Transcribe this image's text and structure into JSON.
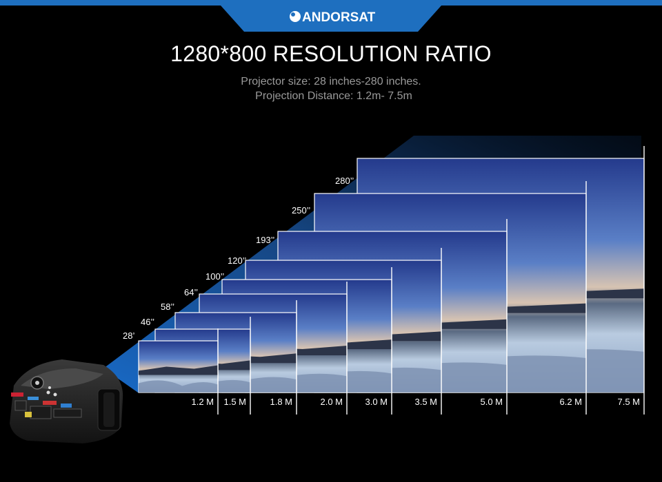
{
  "brand": {
    "name": "ANDORSAT",
    "colors": {
      "banner": "#1e6fbf",
      "accent": "#2f8fe0"
    }
  },
  "headline": "1280*800 RESOLUTION RATIO",
  "specs": {
    "line1": "Projector size: 28 inches-280 inches.",
    "line2": "Projection Distance: 1.2m- 7.5m"
  },
  "screen_sizes": [
    "28’",
    "46’’",
    "58’’",
    "64’’",
    "100’’",
    "120’’",
    "193’’",
    "250’’",
    "280’’"
  ],
  "distances": [
    "1.2 M",
    "1.5 M",
    "1.8 M",
    "2.0 M",
    "3.0 M",
    "3.5 M",
    "5.0 M",
    "6.2 M",
    "7.5 M"
  ],
  "icons": {
    "logo": "satellite-dish-icon",
    "device": "projector-icon"
  }
}
